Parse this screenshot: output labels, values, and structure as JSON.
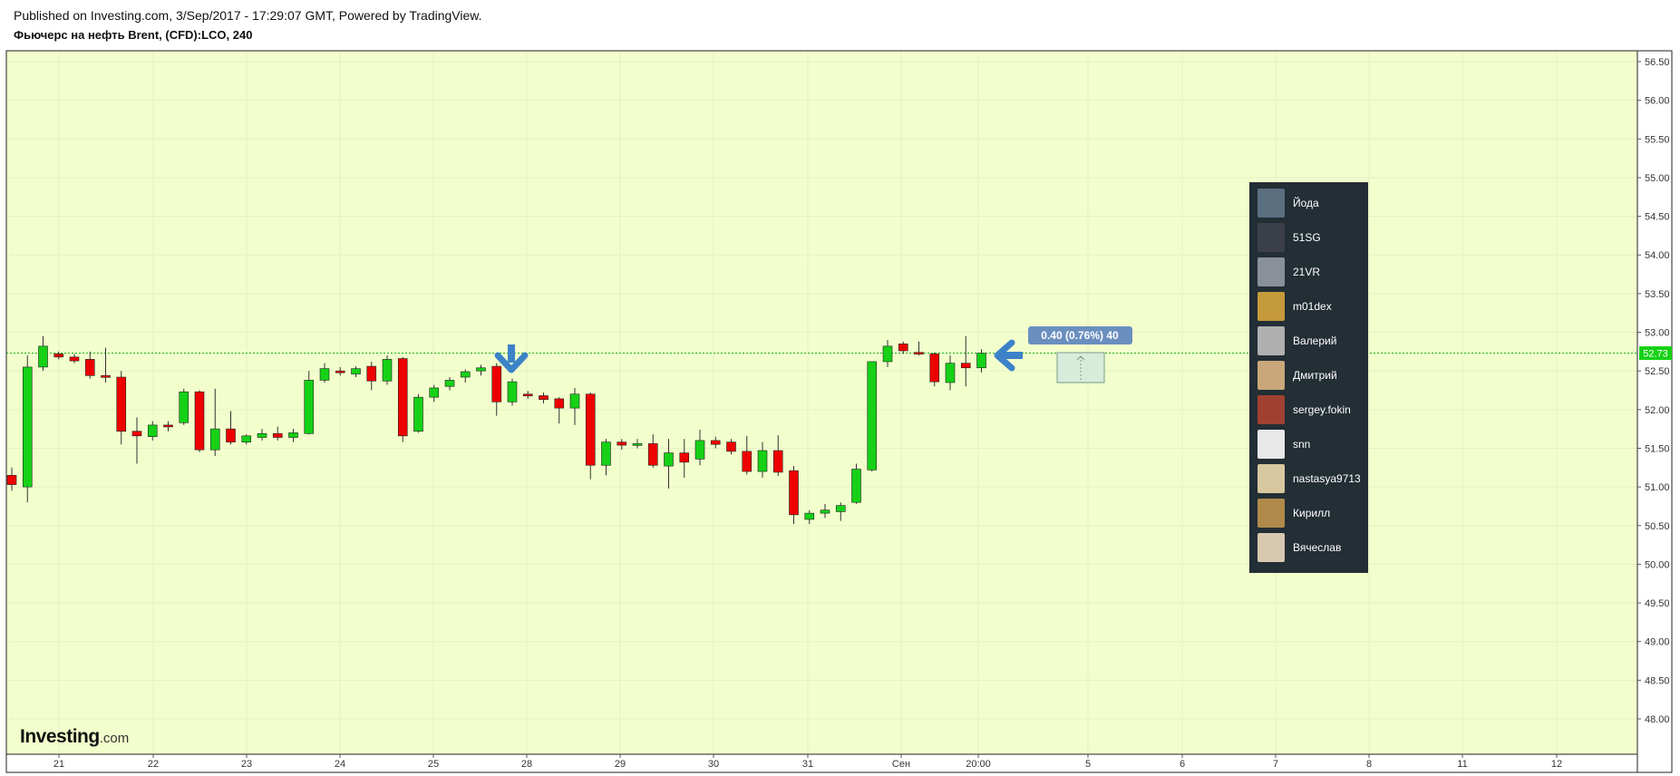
{
  "header": {
    "published": "Published on Investing.com, 3/Sep/2017 - 17:29:07 GMT, Powered by TradingView.",
    "title": "Фьючерс на нефть Brent, (CFD):LCO, 240"
  },
  "logo": {
    "main": "Investing",
    "suffix": ".com"
  },
  "colors": {
    "background": "#f2ffcc",
    "up": "#16d116",
    "down": "#ee0000",
    "price_line": "#16b516",
    "arrow": "#3c82c8",
    "panel": "#232e35",
    "measure_label": "#6a8fbf"
  },
  "measure": {
    "label": "0.40 (0.76%) 40"
  },
  "users": [
    {
      "name": "Йода",
      "avatar_color": "#5a6f80"
    },
    {
      "name": "51SG",
      "avatar_color": "#3a3f4a"
    },
    {
      "name": "21VR",
      "avatar_color": "#8a9099"
    },
    {
      "name": "m01dex",
      "avatar_color": "#c49a3a"
    },
    {
      "name": "Валерий",
      "avatar_color": "#b0b0b0"
    },
    {
      "name": "Дмитрий",
      "avatar_color": "#c9a77a"
    },
    {
      "name": "sergey.fokin",
      "avatar_color": "#a04030"
    },
    {
      "name": "snn",
      "avatar_color": "#e8e8e8"
    },
    {
      "name": "nastasya9713",
      "avatar_color": "#d8c8a0"
    },
    {
      "name": "Кирилл",
      "avatar_color": "#b08a4a"
    },
    {
      "name": "Вячеслав",
      "avatar_color": "#d8c8b0"
    }
  ],
  "chart_data": {
    "type": "candlestick",
    "title": "Фьючерс на нефть Brent, (CFD):LCO, 240",
    "timeframe": "240",
    "y_ticks": [
      48.0,
      48.5,
      49.0,
      49.5,
      50.0,
      50.5,
      51.0,
      51.5,
      52.0,
      52.5,
      53.0,
      53.5,
      54.0,
      54.5,
      55.0,
      55.5,
      56.0,
      56.5
    ],
    "y_tick_labels": [
      "48.00",
      "48.50",
      "49.00",
      "49.50",
      "50.00",
      "50.50",
      "51.00",
      "51.50",
      "52.00",
      "52.50",
      "53.00",
      "53.50",
      "54.00",
      "54.50",
      "55.00",
      "55.50",
      "56.00",
      "56.50"
    ],
    "ylim": [
      47.6,
      56.7
    ],
    "x_labels": [
      "21",
      "22",
      "23",
      "24",
      "25",
      "28",
      "29",
      "30",
      "31",
      "Сен",
      "20:00",
      "5",
      "6",
      "7",
      "8",
      "11",
      "12"
    ],
    "last_price": 52.73,
    "last_price_label": "52.73",
    "grid": true,
    "candles": [
      {
        "o": 51.15,
        "h": 51.25,
        "l": 50.95,
        "c": 51.03
      },
      {
        "o": 51.0,
        "h": 52.7,
        "l": 50.8,
        "c": 52.55
      },
      {
        "o": 52.55,
        "h": 52.95,
        "l": 52.5,
        "c": 52.82
      },
      {
        "o": 52.72,
        "h": 52.75,
        "l": 52.65,
        "c": 52.68
      },
      {
        "o": 52.68,
        "h": 52.72,
        "l": 52.6,
        "c": 52.63
      },
      {
        "o": 52.65,
        "h": 52.75,
        "l": 52.4,
        "c": 52.44
      },
      {
        "o": 52.44,
        "h": 52.8,
        "l": 52.35,
        "c": 52.42
      },
      {
        "o": 52.42,
        "h": 52.5,
        "l": 51.55,
        "c": 51.72
      },
      {
        "o": 51.72,
        "h": 51.9,
        "l": 51.3,
        "c": 51.66
      },
      {
        "o": 51.65,
        "h": 51.85,
        "l": 51.6,
        "c": 51.8
      },
      {
        "o": 51.8,
        "h": 51.85,
        "l": 51.72,
        "c": 51.78
      },
      {
        "o": 51.83,
        "h": 52.27,
        "l": 51.8,
        "c": 52.23
      },
      {
        "o": 52.23,
        "h": 52.25,
        "l": 51.45,
        "c": 51.48
      },
      {
        "o": 51.48,
        "h": 52.27,
        "l": 51.4,
        "c": 51.75
      },
      {
        "o": 51.75,
        "h": 51.98,
        "l": 51.55,
        "c": 51.58
      },
      {
        "o": 51.58,
        "h": 51.68,
        "l": 51.55,
        "c": 51.66
      },
      {
        "o": 51.64,
        "h": 51.75,
        "l": 51.6,
        "c": 51.69
      },
      {
        "o": 51.69,
        "h": 51.78,
        "l": 51.6,
        "c": 51.64
      },
      {
        "o": 51.64,
        "h": 51.75,
        "l": 51.58,
        "c": 51.7
      },
      {
        "o": 51.69,
        "h": 52.5,
        "l": 51.68,
        "c": 52.38
      },
      {
        "o": 52.38,
        "h": 52.6,
        "l": 52.35,
        "c": 52.53
      },
      {
        "o": 52.5,
        "h": 52.55,
        "l": 52.44,
        "c": 52.48
      },
      {
        "o": 52.46,
        "h": 52.56,
        "l": 52.42,
        "c": 52.53
      },
      {
        "o": 52.56,
        "h": 52.62,
        "l": 52.25,
        "c": 52.37
      },
      {
        "o": 52.37,
        "h": 52.7,
        "l": 52.32,
        "c": 52.65
      },
      {
        "o": 52.66,
        "h": 52.68,
        "l": 51.58,
        "c": 51.66
      },
      {
        "o": 51.72,
        "h": 52.2,
        "l": 51.7,
        "c": 52.16
      },
      {
        "o": 52.16,
        "h": 52.32,
        "l": 52.1,
        "c": 52.28
      },
      {
        "o": 52.3,
        "h": 52.42,
        "l": 52.25,
        "c": 52.38
      },
      {
        "o": 52.42,
        "h": 52.52,
        "l": 52.35,
        "c": 52.49
      },
      {
        "o": 52.5,
        "h": 52.58,
        "l": 52.44,
        "c": 52.54
      },
      {
        "o": 52.56,
        "h": 52.6,
        "l": 51.92,
        "c": 52.1
      },
      {
        "o": 52.1,
        "h": 52.4,
        "l": 52.05,
        "c": 52.36
      },
      {
        "o": 52.2,
        "h": 52.24,
        "l": 52.14,
        "c": 52.18
      },
      {
        "o": 52.18,
        "h": 52.22,
        "l": 52.08,
        "c": 52.13
      },
      {
        "o": 52.14,
        "h": 52.16,
        "l": 51.82,
        "c": 52.02
      },
      {
        "o": 52.02,
        "h": 52.28,
        "l": 51.8,
        "c": 52.2
      },
      {
        "o": 52.2,
        "h": 52.22,
        "l": 51.1,
        "c": 51.28
      },
      {
        "o": 51.28,
        "h": 51.62,
        "l": 51.15,
        "c": 51.58
      },
      {
        "o": 51.58,
        "h": 51.62,
        "l": 51.48,
        "c": 51.54
      },
      {
        "o": 51.55,
        "h": 51.62,
        "l": 51.5,
        "c": 51.56
      },
      {
        "o": 51.56,
        "h": 51.68,
        "l": 51.25,
        "c": 51.28
      },
      {
        "o": 51.27,
        "h": 51.62,
        "l": 50.98,
        "c": 51.44
      },
      {
        "o": 51.44,
        "h": 51.62,
        "l": 51.12,
        "c": 51.32
      },
      {
        "o": 51.36,
        "h": 51.74,
        "l": 51.28,
        "c": 51.6
      },
      {
        "o": 51.6,
        "h": 51.65,
        "l": 51.5,
        "c": 51.55
      },
      {
        "o": 51.58,
        "h": 51.62,
        "l": 51.42,
        "c": 51.46
      },
      {
        "o": 51.46,
        "h": 51.66,
        "l": 51.16,
        "c": 51.2
      },
      {
        "o": 51.2,
        "h": 51.58,
        "l": 51.12,
        "c": 51.47
      },
      {
        "o": 51.47,
        "h": 51.67,
        "l": 51.14,
        "c": 51.19
      },
      {
        "o": 51.21,
        "h": 51.27,
        "l": 50.52,
        "c": 50.64
      },
      {
        "o": 50.58,
        "h": 50.7,
        "l": 50.52,
        "c": 50.66
      },
      {
        "o": 50.66,
        "h": 50.78,
        "l": 50.6,
        "c": 50.7
      },
      {
        "o": 50.68,
        "h": 50.8,
        "l": 50.56,
        "c": 50.76
      },
      {
        "o": 50.8,
        "h": 51.3,
        "l": 50.78,
        "c": 51.23
      },
      {
        "o": 51.22,
        "h": 52.62,
        "l": 51.2,
        "c": 52.62
      },
      {
        "o": 52.62,
        "h": 52.9,
        "l": 52.55,
        "c": 52.82
      },
      {
        "o": 52.85,
        "h": 52.88,
        "l": 52.72,
        "c": 52.76
      },
      {
        "o": 52.74,
        "h": 52.88,
        "l": 52.7,
        "c": 52.72
      },
      {
        "o": 52.72,
        "h": 52.74,
        "l": 52.3,
        "c": 52.36
      },
      {
        "o": 52.35,
        "h": 52.7,
        "l": 52.25,
        "c": 52.6
      },
      {
        "o": 52.6,
        "h": 52.95,
        "l": 52.3,
        "c": 52.54
      },
      {
        "o": 52.54,
        "h": 52.78,
        "l": 52.48,
        "c": 52.73
      }
    ]
  }
}
